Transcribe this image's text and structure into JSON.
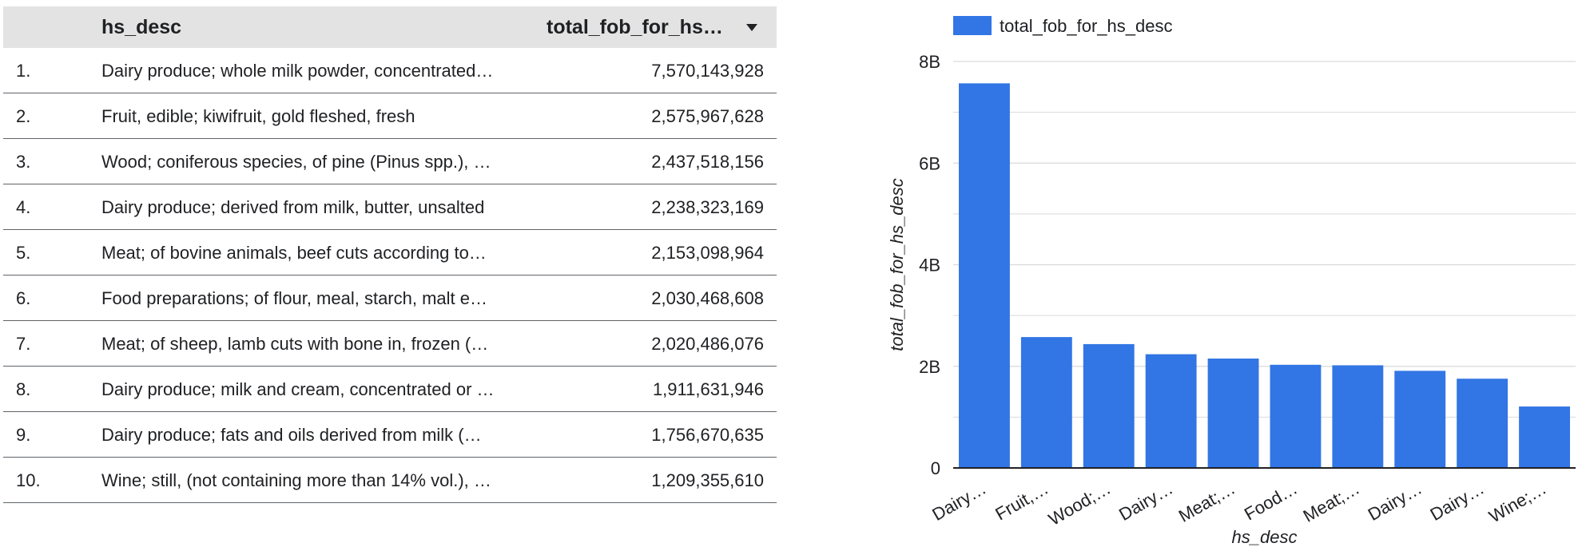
{
  "table": {
    "header": {
      "desc": "hs_desc",
      "total": "total_fob_for_hs…"
    },
    "rows": [
      {
        "idx": "1.",
        "desc": "Dairy produce; whole milk powder, concentrated…",
        "value": "7,570,143,928"
      },
      {
        "idx": "2.",
        "desc": "Fruit, edible; kiwifruit, gold fleshed, fresh",
        "value": "2,575,967,628"
      },
      {
        "idx": "3.",
        "desc": "Wood; coniferous species, of pine (Pinus spp.), …",
        "value": "2,437,518,156"
      },
      {
        "idx": "4.",
        "desc": "Dairy produce; derived from milk, butter, unsalted",
        "value": "2,238,323,169"
      },
      {
        "idx": "5.",
        "desc": "Meat; of bovine animals, beef cuts according to…",
        "value": "2,153,098,964"
      },
      {
        "idx": "6.",
        "desc": "Food preparations; of flour, meal, starch, malt e…",
        "value": "2,030,468,608"
      },
      {
        "idx": "7.",
        "desc": "Meat; of sheep, lamb cuts with bone in, frozen (…",
        "value": "2,020,486,076"
      },
      {
        "idx": "8.",
        "desc": "Dairy produce; milk and cream, concentrated or …",
        "value": "1,911,631,946"
      },
      {
        "idx": "9.",
        "desc": "Dairy produce; fats and oils derived from milk (…",
        "value": "1,756,670,635"
      },
      {
        "idx": "10.",
        "desc": "Wine; still, (not containing more than 14% vol.), …",
        "value": "1,209,355,610"
      }
    ]
  },
  "chart_data": {
    "type": "bar",
    "categories": [
      "Dairy…",
      "Fruit,…",
      "Wood;…",
      "Dairy…",
      "Meat;…",
      "Food…",
      "Meat;…",
      "Dairy…",
      "Dairy…",
      "Wine;…"
    ],
    "series": [
      {
        "name": "total_fob_for_hs_desc",
        "values": [
          7570143928,
          2575967628,
          2437518156,
          2238323169,
          2153098964,
          2030468608,
          2020486076,
          1911631946,
          1756670635,
          1209355610
        ]
      }
    ],
    "xlabel": "hs_desc",
    "ylabel": "total_fob_for_hs_desc",
    "ylim": [
      0,
      8000000000
    ],
    "yticks": [
      {
        "value": 0,
        "label": "0"
      },
      {
        "value": 2000000000,
        "label": "2B"
      },
      {
        "value": 4000000000,
        "label": "4B"
      },
      {
        "value": 6000000000,
        "label": "6B"
      },
      {
        "value": 8000000000,
        "label": "8B"
      }
    ],
    "minor_gridlines": [
      1000000000,
      3000000000,
      5000000000,
      7000000000
    ],
    "grid": true,
    "legend": "top-left",
    "colors": {
      "bar": "#3275e4",
      "grid": "#d9d9d9",
      "axis": "#202124"
    }
  }
}
